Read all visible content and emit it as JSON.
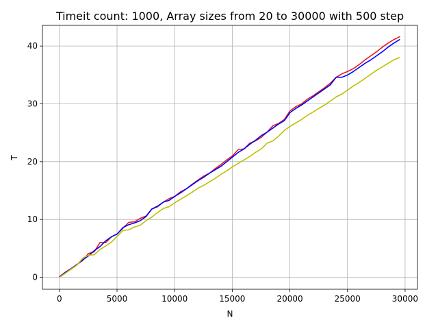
{
  "chart_data": {
    "type": "line",
    "title": "Timeit count: 1000, Array sizes from 20 to 30000 with 500 step",
    "xlabel": "N",
    "ylabel": "T",
    "xlim": [
      -1475,
      31075
    ],
    "ylim": [
      -2.075,
      43.575
    ],
    "xticks": [
      0,
      5000,
      10000,
      15000,
      20000,
      25000,
      30000
    ],
    "yticks": [
      0,
      10,
      20,
      30,
      40
    ],
    "grid": true,
    "x": [
      20,
      520,
      1020,
      1520,
      2020,
      2520,
      3020,
      3520,
      4020,
      4520,
      5020,
      5520,
      6020,
      6520,
      7020,
      7520,
      8020,
      8520,
      9020,
      9520,
      10020,
      10520,
      11020,
      11520,
      12020,
      12520,
      13020,
      13520,
      14020,
      14520,
      15020,
      15520,
      16020,
      16520,
      17020,
      17520,
      18020,
      18520,
      19020,
      19520,
      20020,
      20520,
      21020,
      21520,
      22020,
      22520,
      23020,
      23520,
      24020,
      24520,
      25020,
      25520,
      26020,
      26520,
      27020,
      27520,
      28020,
      28520,
      29020,
      29520
    ],
    "series": [
      {
        "color": "#e41a1c",
        "values": [
          0.1,
          0.9,
          1.5,
          2.2,
          2.9,
          4.1,
          4.4,
          6.0,
          6.0,
          7.0,
          7.5,
          8.5,
          9.5,
          9.6,
          10.2,
          10.6,
          11.8,
          12.2,
          13.0,
          13.6,
          14.0,
          14.8,
          15.3,
          16.1,
          16.8,
          17.5,
          18.0,
          18.8,
          19.5,
          20.3,
          21.0,
          22.1,
          22.2,
          23.2,
          23.6,
          24.2,
          25.1,
          26.2,
          26.6,
          27.3,
          28.8,
          29.5,
          30.0,
          30.8,
          31.4,
          32.1,
          32.8,
          33.6,
          34.6,
          35.2,
          35.6,
          36.1,
          36.8,
          37.6,
          38.3,
          39.0,
          39.8,
          40.5,
          41.1,
          41.6
        ]
      },
      {
        "color": "#0000ff",
        "values": [
          0.1,
          0.8,
          1.5,
          2.2,
          3.0,
          3.7,
          4.6,
          5.3,
          6.3,
          7.0,
          7.5,
          8.6,
          9.1,
          9.4,
          9.8,
          10.5,
          11.8,
          12.3,
          13.0,
          13.3,
          14.0,
          14.6,
          15.3,
          16.0,
          16.7,
          17.3,
          18.0,
          18.6,
          19.2,
          20.0,
          20.8,
          21.6,
          22.2,
          23.0,
          23.7,
          24.5,
          25.1,
          25.8,
          26.5,
          27.1,
          28.5,
          29.2,
          29.8,
          30.5,
          31.2,
          31.9,
          32.6,
          33.3,
          34.6,
          34.6,
          35.0,
          35.6,
          36.3,
          37.0,
          37.6,
          38.3,
          39.0,
          39.8,
          40.5,
          41.1
        ]
      },
      {
        "color": "#bfbf00",
        "values": [
          0.0,
          0.7,
          1.4,
          2.1,
          3.3,
          3.8,
          3.9,
          4.8,
          5.4,
          6.1,
          7.1,
          8.1,
          8.2,
          8.7,
          9.0,
          9.8,
          10.4,
          11.2,
          11.9,
          12.2,
          12.9,
          13.5,
          14.1,
          14.7,
          15.4,
          15.9,
          16.5,
          17.1,
          17.8,
          18.4,
          19.1,
          19.7,
          20.3,
          20.9,
          21.6,
          22.2,
          23.2,
          23.6,
          24.4,
          25.4,
          26.1,
          26.7,
          27.3,
          28.0,
          28.6,
          29.2,
          29.8,
          30.5,
          31.2,
          31.7,
          32.4,
          33.1,
          33.7,
          34.4,
          35.1,
          35.8,
          36.4,
          37.0,
          37.6,
          38.0
        ]
      }
    ]
  }
}
